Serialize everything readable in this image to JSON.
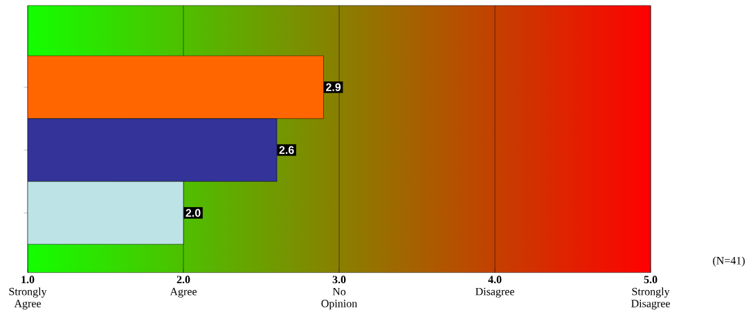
{
  "chart_data": {
    "type": "bar",
    "orientation": "horizontal",
    "categories": [
      null,
      null,
      null
    ],
    "values": [
      2.9,
      2.6,
      2.0
    ],
    "colors": [
      "#ff6600",
      "#333399",
      "#bde3e6"
    ],
    "value_labels": [
      "2.9",
      "2.6",
      "2.0"
    ],
    "xlim": [
      1,
      5
    ],
    "xticks": [
      {
        "value": 1,
        "label": "**1.0** Strongly Agree"
      },
      {
        "value": 2,
        "label": "**2.0** Agree"
      },
      {
        "value": 3,
        "label": "**3.0** No Opinion"
      },
      {
        "value": 4,
        "label": "**4.0** Disagree"
      },
      {
        "value": 5,
        "label": "**5.0** Strongly Disagree"
      }
    ],
    "grid": "x",
    "annotations": [
      "(N=41)"
    ]
  }
}
